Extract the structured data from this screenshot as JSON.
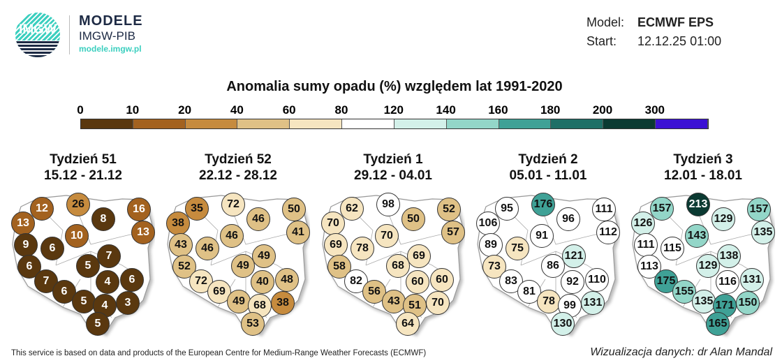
{
  "header": {
    "logo_text": "IMGW",
    "brand": "MODELE",
    "org": "IMGW-PIB",
    "url": "modele.imgw.pl",
    "model_label": "Model:",
    "model_value": "ECMWF EPS",
    "start_label": "Start:",
    "start_value": "12.12.25 01:00"
  },
  "chart_data": {
    "type": "map-points",
    "title": "Anomalia sumy opadu (%) względem lat 1991-2020",
    "legend": {
      "ticks": [
        "0",
        "10",
        "20",
        "40",
        "60",
        "80",
        "120",
        "140",
        "160",
        "180",
        "200",
        "300"
      ],
      "bounds": [
        0,
        10,
        20,
        40,
        60,
        80,
        120,
        140,
        160,
        180,
        200,
        300
      ],
      "colors": [
        "#5a380f",
        "#a3621f",
        "#c68b3e",
        "#dfc186",
        "#f6e5c0",
        "#ffffff",
        "#d3f0e9",
        "#93d6c8",
        "#3fa196",
        "#1f6f66",
        "#0b3a32",
        "#3c12d4"
      ]
    },
    "panels": [
      {
        "week": "Tydzień 51",
        "dates": "15.12 - 21.12",
        "values": [
          13,
          12,
          26,
          8,
          16,
          13,
          10,
          9,
          6,
          6,
          7,
          6,
          5,
          7,
          4,
          6,
          5,
          4,
          3,
          5
        ]
      },
      {
        "week": "Tydzień 52",
        "dates": "22.12 - 28.12",
        "values": [
          38,
          35,
          72,
          46,
          50,
          41,
          46,
          43,
          46,
          52,
          72,
          69,
          49,
          49,
          40,
          48,
          49,
          68,
          38,
          53
        ]
      },
      {
        "week": "Tydzień 1",
        "dates": "29.12 - 04.01",
        "values": [
          70,
          62,
          98,
          50,
          52,
          57,
          70,
          69,
          78,
          58,
          82,
          56,
          68,
          69,
          60,
          60,
          43,
          51,
          70,
          64
        ]
      },
      {
        "week": "Tydzień 2",
        "dates": "05.01 - 11.01",
        "values": [
          106,
          95,
          176,
          96,
          111,
          112,
          91,
          89,
          75,
          73,
          83,
          81,
          86,
          121,
          92,
          110,
          78,
          99,
          131,
          130
        ]
      },
      {
        "week": "Tydzień 3",
        "dates": "12.01 - 18.01",
        "values": [
          126,
          157,
          213,
          129,
          157,
          135,
          143,
          111,
          115,
          113,
          175,
          155,
          129,
          138,
          116,
          131,
          135,
          171,
          150,
          165
        ]
      }
    ]
  },
  "footer": {
    "source": "This service is based on data and products of the European Centre for Medium-Range Weather Forecasts (ECMWF)",
    "credit": "Wizualizacja danych: dr Alan Mandal"
  }
}
